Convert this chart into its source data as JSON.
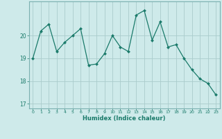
{
  "x": [
    0,
    1,
    2,
    3,
    4,
    5,
    6,
    7,
    8,
    9,
    10,
    11,
    12,
    13,
    14,
    15,
    16,
    17,
    18,
    19,
    20,
    21,
    22,
    23
  ],
  "y": [
    19.0,
    20.2,
    20.5,
    19.3,
    19.7,
    20.0,
    20.3,
    18.7,
    18.75,
    19.2,
    20.0,
    19.5,
    19.3,
    20.9,
    21.1,
    19.8,
    20.6,
    19.5,
    19.6,
    19.0,
    18.5,
    18.1,
    17.9,
    17.4
  ],
  "line_color": "#1a7a6a",
  "marker": "D",
  "marker_size": 2.0,
  "bg_color": "#ceeaea",
  "grid_color": "#aacccc",
  "xlabel": "Humidex (Indice chaleur)",
  "ylabel": "",
  "xlim": [
    -0.5,
    23.5
  ],
  "ylim": [
    16.8,
    21.5
  ],
  "yticks": [
    17,
    18,
    19,
    20
  ],
  "xticks": [
    0,
    1,
    2,
    3,
    4,
    5,
    6,
    7,
    8,
    9,
    10,
    11,
    12,
    13,
    14,
    15,
    16,
    17,
    18,
    19,
    20,
    21,
    22,
    23
  ]
}
